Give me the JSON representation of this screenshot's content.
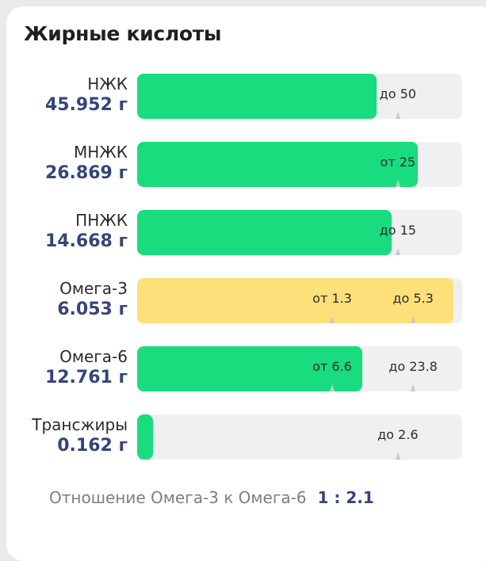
{
  "title": "Жирные кислоты",
  "colors": {
    "ok": "#19dc7e",
    "warn": "#fde07a",
    "track": "#eff0f2",
    "value": "#34457a"
  },
  "rows": [
    {
      "name": "НЖК",
      "value": "45.952 г",
      "fill": 0.737,
      "status": "ok",
      "markers": [
        {
          "label": "до 50",
          "pos": 0.802
        }
      ]
    },
    {
      "name": "МНЖК",
      "value": "26.869 г",
      "fill": 0.863,
      "status": "ok",
      "markers": [
        {
          "label": "от 25",
          "pos": 0.802
        }
      ]
    },
    {
      "name": "ПНЖК",
      "value": "14.668 г",
      "fill": 0.783,
      "status": "ok",
      "markers": [
        {
          "label": "до 15",
          "pos": 0.802
        }
      ]
    },
    {
      "name": "Омега-3",
      "value": "6.053 г",
      "fill": 0.973,
      "status": "warn",
      "markers": [
        {
          "label": "от 1.3",
          "pos": 0.6
        },
        {
          "label": "до 5.3",
          "pos": 0.849
        }
      ]
    },
    {
      "name": "Омега-6",
      "value": "12.761 г",
      "fill": 0.693,
      "status": "ok",
      "markers": [
        {
          "label": "от 6.6",
          "pos": 0.6
        },
        {
          "label": "до 23.8",
          "pos": 0.849
        }
      ]
    },
    {
      "name": "Трансжиры",
      "value": "0.162 г",
      "fill": 0.049,
      "status": "ok",
      "markers": [
        {
          "label": "до 2.6",
          "pos": 0.802
        }
      ]
    }
  ],
  "footer": {
    "text": "Отношение Омега-3 к Омега-6",
    "ratio": "1 : 2.1"
  }
}
